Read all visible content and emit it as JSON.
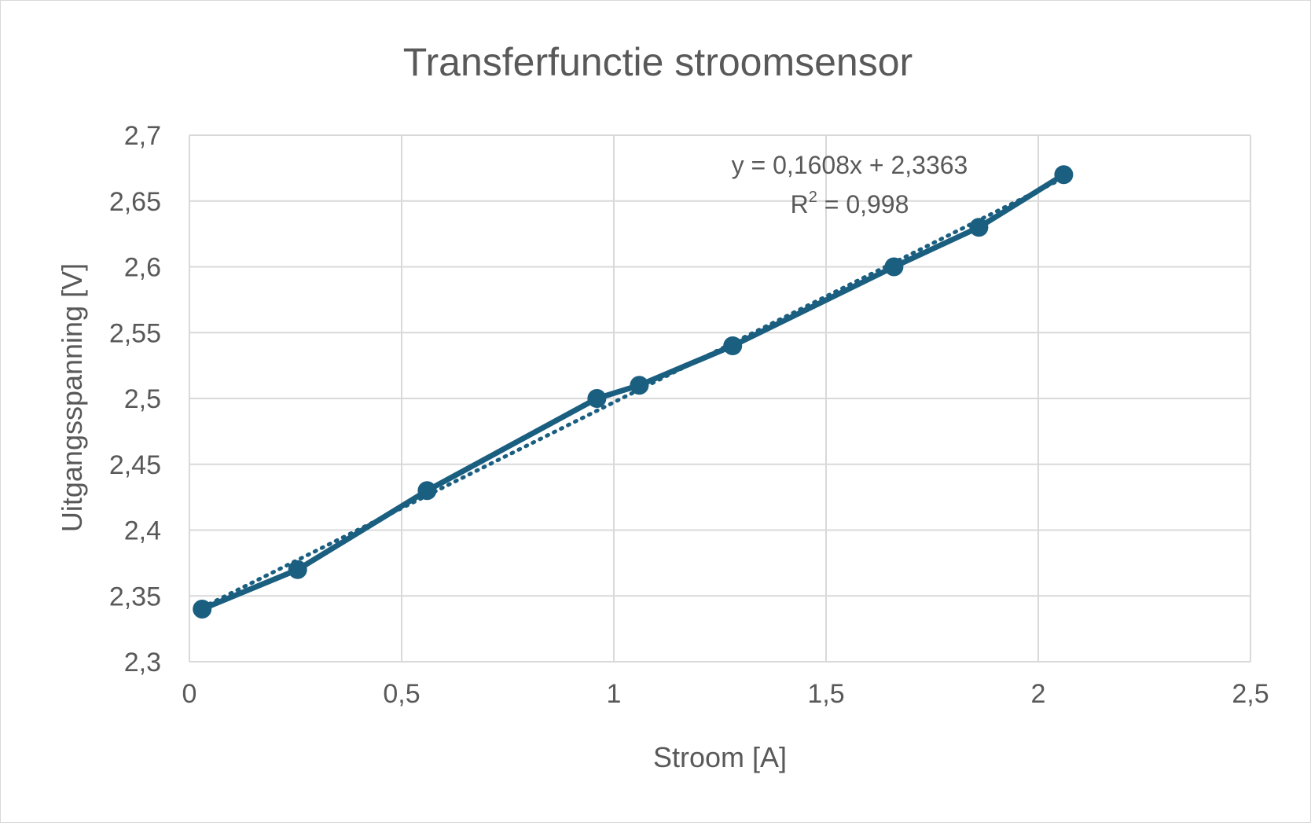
{
  "chart_data": {
    "type": "scatter",
    "title": "Transferfunctie stroomsensor",
    "xlabel": "Stroom [A]",
    "ylabel": "Uitgangsspanning [V]",
    "xlim": [
      0,
      2.5
    ],
    "ylim": [
      2.3,
      2.7
    ],
    "x_ticks": [
      "0",
      "0,5",
      "1",
      "1,5",
      "2",
      "2,5"
    ],
    "y_ticks": [
      "2,3",
      "2,35",
      "2,4",
      "2,45",
      "2,5",
      "2,55",
      "2,6",
      "2,65",
      "2,7"
    ],
    "grid": true,
    "series": [
      {
        "x": [
          0.03,
          0.255,
          0.56,
          0.96,
          1.06,
          1.28,
          1.66,
          1.86,
          2.06
        ],
        "y": [
          2.34,
          2.37,
          2.43,
          2.5,
          2.51,
          2.54,
          2.6,
          2.63,
          2.67
        ],
        "color": "#1a5e80",
        "style": "line+markers"
      }
    ],
    "trendline": {
      "type": "linear",
      "slope": 0.1608,
      "intercept": 2.3363,
      "style": "dotted",
      "color": "#1a5e80",
      "equation_label": "y = 0,1608x + 2,3363",
      "r2_prefix": "R",
      "r2_sup": "2",
      "r2_value": " = 0,998"
    }
  }
}
